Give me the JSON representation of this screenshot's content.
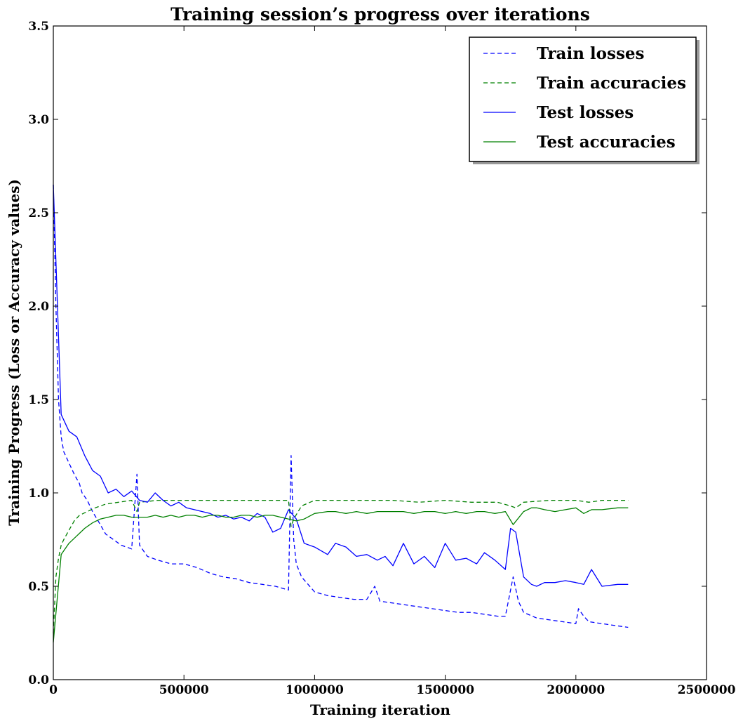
{
  "chart_data": {
    "type": "line",
    "title": "Training session’s progress over iterations",
    "xlabel": "Training iteration",
    "ylabel": "Training Progress (Loss or Accuracy values)",
    "xlim": [
      0,
      2500000
    ],
    "ylim": [
      0.0,
      3.5
    ],
    "x_ticks": [
      0,
      500000,
      1000000,
      1500000,
      2000000,
      2500000
    ],
    "y_ticks": [
      0.0,
      0.5,
      1.0,
      1.5,
      2.0,
      2.5,
      3.0,
      3.5
    ],
    "x_tick_labels": [
      "0",
      "500000",
      "1000000",
      "1500000",
      "2000000",
      "2500000"
    ],
    "y_tick_labels": [
      "0.0",
      "0.5",
      "1.0",
      "1.5",
      "2.0",
      "2.5",
      "3.0",
      "3.5"
    ],
    "grid": false,
    "legend_position": "top-right",
    "series": [
      {
        "name": "Train losses",
        "style": "dashed",
        "color": "#0000ff",
        "x": [
          0,
          10000,
          20000,
          30000,
          40000,
          60000,
          80000,
          100000,
          110000,
          130000,
          150000,
          180000,
          200000,
          230000,
          260000,
          300000,
          320000,
          330000,
          360000,
          400000,
          450000,
          500000,
          550000,
          600000,
          650000,
          700000,
          750000,
          800000,
          850000,
          900000,
          910000,
          920000,
          930000,
          950000,
          1000000,
          1050000,
          1100000,
          1150000,
          1200000,
          1230000,
          1250000,
          1300000,
          1350000,
          1400000,
          1450000,
          1500000,
          1550000,
          1600000,
          1650000,
          1700000,
          1730000,
          1760000,
          1780000,
          1800000,
          1850000,
          1900000,
          1950000,
          2000000,
          2010000,
          2030000,
          2050000,
          2100000,
          2150000,
          2200000
        ],
        "y": [
          2.65,
          2.0,
          1.5,
          1.3,
          1.22,
          1.16,
          1.1,
          1.05,
          1.0,
          0.96,
          0.9,
          0.83,
          0.78,
          0.75,
          0.72,
          0.7,
          1.1,
          0.72,
          0.66,
          0.64,
          0.62,
          0.62,
          0.6,
          0.57,
          0.55,
          0.54,
          0.52,
          0.51,
          0.5,
          0.48,
          1.2,
          0.75,
          0.62,
          0.55,
          0.47,
          0.45,
          0.44,
          0.43,
          0.43,
          0.5,
          0.42,
          0.41,
          0.4,
          0.39,
          0.38,
          0.37,
          0.36,
          0.36,
          0.35,
          0.34,
          0.34,
          0.55,
          0.42,
          0.36,
          0.33,
          0.32,
          0.31,
          0.3,
          0.38,
          0.34,
          0.31,
          0.3,
          0.29,
          0.28
        ]
      },
      {
        "name": "Train accuracies",
        "style": "dashed",
        "color": "#008000",
        "x": [
          0,
          10000,
          20000,
          30000,
          40000,
          60000,
          80000,
          100000,
          130000,
          160000,
          200000,
          250000,
          300000,
          320000,
          330000,
          400000,
          500000,
          600000,
          700000,
          800000,
          900000,
          910000,
          920000,
          950000,
          1000000,
          1100000,
          1200000,
          1300000,
          1400000,
          1500000,
          1600000,
          1700000,
          1750000,
          1770000,
          1800000,
          1900000,
          2000000,
          2050000,
          2100000,
          2200000
        ],
        "y": [
          0.25,
          0.55,
          0.65,
          0.72,
          0.75,
          0.8,
          0.85,
          0.88,
          0.9,
          0.92,
          0.94,
          0.95,
          0.96,
          0.9,
          0.95,
          0.96,
          0.96,
          0.96,
          0.96,
          0.96,
          0.96,
          0.82,
          0.86,
          0.93,
          0.96,
          0.96,
          0.96,
          0.96,
          0.95,
          0.96,
          0.95,
          0.95,
          0.93,
          0.92,
          0.95,
          0.96,
          0.96,
          0.95,
          0.96,
          0.96
        ]
      },
      {
        "name": "Test losses",
        "style": "solid",
        "color": "#0000ff",
        "x": [
          0,
          30000,
          60000,
          90000,
          120000,
          150000,
          180000,
          210000,
          240000,
          270000,
          300000,
          330000,
          360000,
          390000,
          420000,
          450000,
          480000,
          510000,
          540000,
          570000,
          600000,
          630000,
          660000,
          690000,
          720000,
          750000,
          780000,
          810000,
          840000,
          870000,
          900000,
          930000,
          960000,
          1000000,
          1050000,
          1080000,
          1120000,
          1160000,
          1200000,
          1240000,
          1270000,
          1300000,
          1340000,
          1380000,
          1420000,
          1460000,
          1500000,
          1540000,
          1580000,
          1620000,
          1650000,
          1690000,
          1730000,
          1750000,
          1770000,
          1800000,
          1830000,
          1850000,
          1880000,
          1920000,
          1960000,
          2000000,
          2030000,
          2060000,
          2100000,
          2160000,
          2200000
        ],
        "y": [
          2.65,
          1.42,
          1.33,
          1.3,
          1.2,
          1.12,
          1.09,
          1.0,
          1.02,
          0.98,
          1.01,
          0.96,
          0.95,
          1.0,
          0.96,
          0.93,
          0.95,
          0.92,
          0.91,
          0.9,
          0.89,
          0.87,
          0.88,
          0.86,
          0.87,
          0.85,
          0.89,
          0.87,
          0.79,
          0.81,
          0.91,
          0.86,
          0.73,
          0.71,
          0.67,
          0.73,
          0.71,
          0.66,
          0.67,
          0.64,
          0.66,
          0.61,
          0.73,
          0.62,
          0.66,
          0.6,
          0.73,
          0.64,
          0.65,
          0.62,
          0.68,
          0.64,
          0.59,
          0.81,
          0.79,
          0.55,
          0.51,
          0.5,
          0.52,
          0.52,
          0.53,
          0.52,
          0.51,
          0.59,
          0.5,
          0.51,
          0.51
        ]
      },
      {
        "name": "Test accuracies",
        "style": "solid",
        "color": "#008000",
        "x": [
          0,
          30000,
          60000,
          90000,
          120000,
          150000,
          180000,
          210000,
          240000,
          270000,
          300000,
          330000,
          360000,
          390000,
          420000,
          450000,
          480000,
          510000,
          540000,
          570000,
          600000,
          630000,
          660000,
          690000,
          720000,
          750000,
          780000,
          810000,
          840000,
          870000,
          900000,
          930000,
          960000,
          1000000,
          1050000,
          1080000,
          1120000,
          1160000,
          1200000,
          1240000,
          1270000,
          1300000,
          1340000,
          1380000,
          1420000,
          1460000,
          1500000,
          1540000,
          1580000,
          1620000,
          1650000,
          1690000,
          1730000,
          1760000,
          1800000,
          1830000,
          1850000,
          1880000,
          1920000,
          1960000,
          2000000,
          2030000,
          2060000,
          2100000,
          2160000,
          2200000
        ],
        "y": [
          0.2,
          0.67,
          0.73,
          0.77,
          0.81,
          0.84,
          0.86,
          0.87,
          0.88,
          0.88,
          0.87,
          0.87,
          0.87,
          0.88,
          0.87,
          0.88,
          0.87,
          0.88,
          0.88,
          0.87,
          0.88,
          0.88,
          0.87,
          0.87,
          0.88,
          0.88,
          0.87,
          0.88,
          0.88,
          0.87,
          0.86,
          0.85,
          0.86,
          0.89,
          0.9,
          0.9,
          0.89,
          0.9,
          0.89,
          0.9,
          0.9,
          0.9,
          0.9,
          0.89,
          0.9,
          0.9,
          0.89,
          0.9,
          0.89,
          0.9,
          0.9,
          0.89,
          0.9,
          0.83,
          0.9,
          0.92,
          0.92,
          0.91,
          0.9,
          0.91,
          0.92,
          0.89,
          0.91,
          0.91,
          0.92,
          0.92
        ]
      }
    ]
  }
}
